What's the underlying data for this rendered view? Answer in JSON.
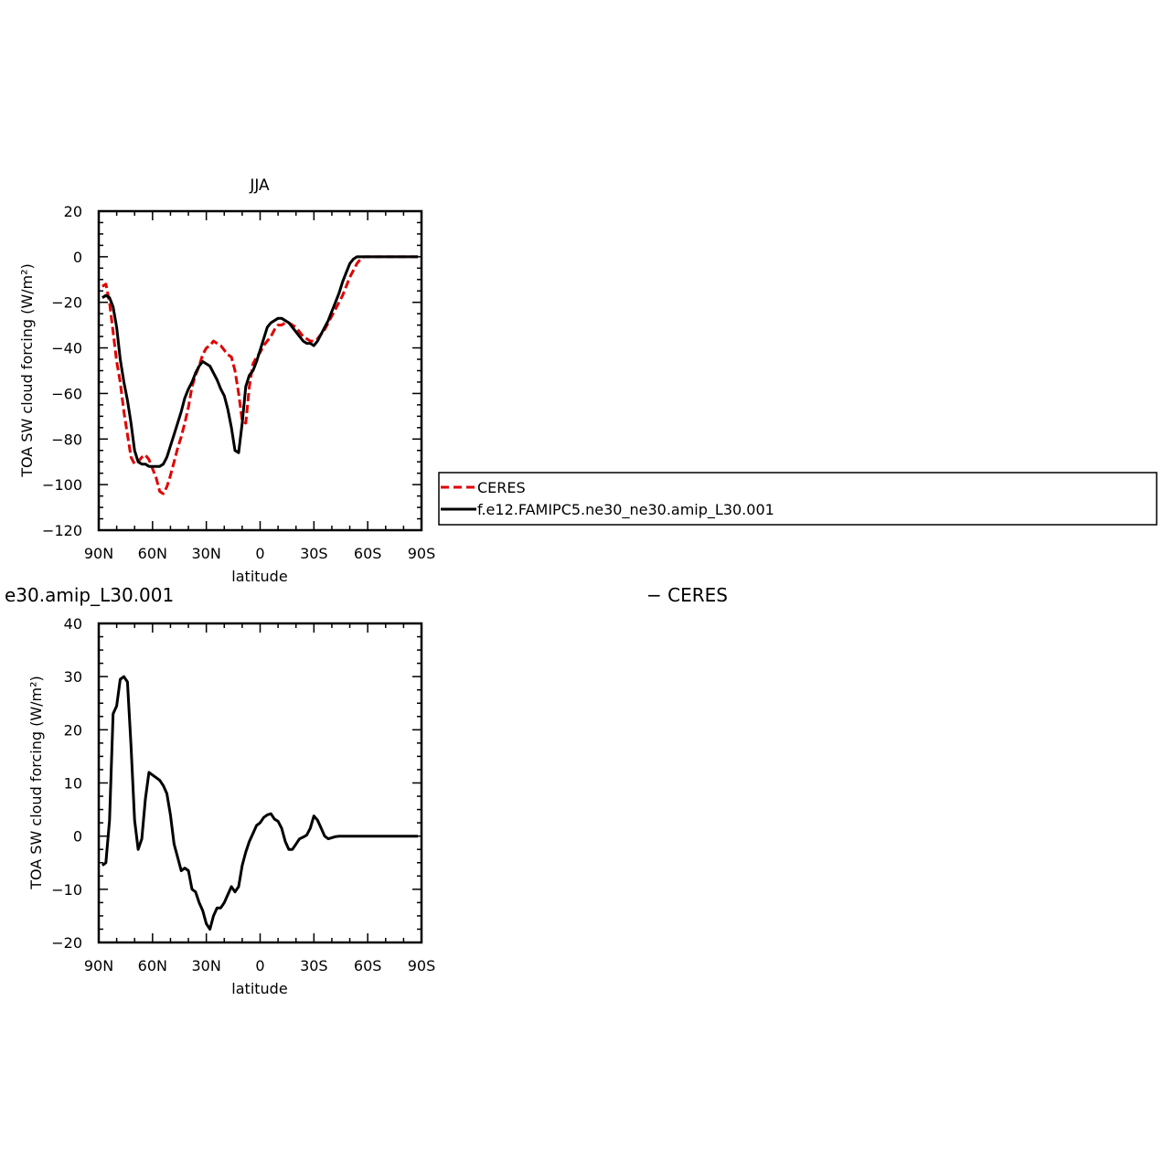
{
  "chart_data": [
    {
      "type": "line",
      "title": "JJA",
      "xlabel": "latitude",
      "ylabel": "TOA SW cloud forcing (W/m²)",
      "xlim": [
        90,
        -90
      ],
      "ylim": [
        -120,
        20
      ],
      "x_ticks": [
        90,
        60,
        30,
        0,
        -30,
        -60,
        -90
      ],
      "x_tick_labels": [
        "90N",
        "60N",
        "30N",
        "0",
        "30S",
        "60S",
        "90S"
      ],
      "y_ticks": [
        -120,
        -100,
        -80,
        -60,
        -40,
        -20,
        0,
        20
      ],
      "y_tick_labels": [
        "−120",
        "−100",
        "−80",
        "−60",
        "−40",
        "−20",
        "0",
        "20"
      ],
      "legend_position": "right, outside plot",
      "series": [
        {
          "name": "CERES",
          "color": "#e00000",
          "dash": "dashed",
          "x": [
            88,
            86,
            84,
            82,
            80,
            78,
            76,
            74,
            72,
            70,
            68,
            66,
            64,
            62,
            60,
            58,
            56,
            54,
            52,
            50,
            48,
            46,
            44,
            42,
            40,
            38,
            36,
            34,
            32,
            30,
            28,
            26,
            24,
            22,
            20,
            18,
            16,
            14,
            12,
            10,
            8,
            6,
            4,
            2,
            0,
            -2,
            -4,
            -6,
            -8,
            -10,
            -12,
            -14,
            -16,
            -18,
            -20,
            -22,
            -24,
            -26,
            -28,
            -30,
            -32,
            -34,
            -36,
            -38,
            -40,
            -42,
            -44,
            -46,
            -48,
            -50,
            -52,
            -54,
            -56,
            -58,
            -60,
            -62,
            -64,
            -66,
            -68,
            -70,
            -72,
            -74,
            -76,
            -78,
            -80,
            -82,
            -84,
            -86,
            -88
          ],
          "y": [
            -13,
            -12,
            -20,
            -33,
            -46,
            -55,
            -68,
            -78,
            -88,
            -91,
            -90,
            -88,
            -87,
            -89,
            -93,
            -97,
            -103,
            -104,
            -101,
            -96,
            -90,
            -84,
            -79,
            -73,
            -66,
            -57,
            -52,
            -48,
            -43,
            -40,
            -39,
            -37,
            -38,
            -39,
            -41,
            -43,
            -44,
            -50,
            -60,
            -72,
            -73,
            -57,
            -47,
            -44,
            -42,
            -39,
            -37,
            -35,
            -32,
            -30,
            -30,
            -29,
            -29,
            -30,
            -31,
            -33,
            -35,
            -36,
            -37,
            -37,
            -36,
            -34,
            -32,
            -29,
            -26,
            -23,
            -20,
            -17,
            -13,
            -9,
            -6,
            -3,
            -1,
            0,
            0,
            0,
            0,
            0,
            0,
            0,
            0,
            0,
            0,
            0,
            0,
            0,
            0,
            0,
            0
          ]
        },
        {
          "name": "f.e12.FAMIPC5.ne30_ne30.amip_L30.001",
          "color": "#000000",
          "dash": "solid",
          "x": [
            88,
            86,
            84,
            82,
            80,
            78,
            76,
            74,
            72,
            70,
            68,
            66,
            64,
            62,
            60,
            58,
            56,
            54,
            52,
            50,
            48,
            46,
            44,
            42,
            40,
            38,
            36,
            34,
            32,
            30,
            28,
            26,
            24,
            22,
            20,
            18,
            16,
            14,
            12,
            10,
            8,
            6,
            4,
            2,
            0,
            -2,
            -4,
            -6,
            -8,
            -10,
            -12,
            -14,
            -16,
            -18,
            -20,
            -22,
            -24,
            -26,
            -28,
            -30,
            -32,
            -34,
            -36,
            -38,
            -40,
            -42,
            -44,
            -46,
            -48,
            -50,
            -52,
            -54,
            -56,
            -58,
            -60,
            -62,
            -64,
            -66,
            -68,
            -70,
            -72,
            -74,
            -76,
            -78,
            -80,
            -82,
            -84,
            -86,
            -88
          ],
          "y": [
            -18,
            -17,
            -18,
            -22,
            -31,
            -45,
            -55,
            -63,
            -73,
            -85,
            -90,
            -91,
            -91,
            -92,
            -92,
            -92,
            -92,
            -91,
            -88,
            -83,
            -78,
            -73,
            -68,
            -62,
            -58,
            -55,
            -51,
            -48,
            -46,
            -47,
            -48,
            -51,
            -54,
            -58,
            -61,
            -67,
            -75,
            -85,
            -86,
            -73,
            -57,
            -52,
            -50,
            -46,
            -41,
            -36,
            -31,
            -29,
            -28,
            -27,
            -27,
            -28,
            -29,
            -31,
            -33,
            -35,
            -37,
            -38,
            -38,
            -39,
            -37,
            -34,
            -31,
            -28,
            -24,
            -20,
            -16,
            -11,
            -7,
            -3,
            -1,
            0,
            0,
            0,
            0,
            0,
            0,
            0,
            0,
            0,
            0,
            0,
            0,
            0,
            0,
            0,
            0,
            0,
            0
          ]
        }
      ]
    },
    {
      "type": "line",
      "title": "e30.amip_L30.001",
      "title_right": "− CERES",
      "xlabel": "latitude",
      "ylabel": "TOA SW cloud forcing (W/m²)",
      "xlim": [
        90,
        -90
      ],
      "ylim": [
        -20,
        40
      ],
      "x_ticks": [
        90,
        60,
        30,
        0,
        -30,
        -60,
        -90
      ],
      "x_tick_labels": [
        "90N",
        "60N",
        "30N",
        "0",
        "30S",
        "60S",
        "90S"
      ],
      "y_ticks": [
        -20,
        -10,
        0,
        10,
        20,
        30,
        40
      ],
      "y_tick_labels": [
        "−20",
        "−10",
        "0",
        "10",
        "20",
        "30",
        "40"
      ],
      "series": [
        {
          "color": "#000000",
          "dash": "solid",
          "x": [
            88,
            86,
            84,
            82,
            80,
            78,
            76,
            74,
            72,
            70,
            68,
            66,
            64,
            62,
            60,
            58,
            56,
            54,
            52,
            50,
            48,
            46,
            44,
            42,
            40,
            38,
            36,
            34,
            32,
            30,
            28,
            26,
            24,
            22,
            20,
            18,
            16,
            14,
            12,
            10,
            8,
            6,
            4,
            2,
            0,
            -2,
            -4,
            -6,
            -8,
            -10,
            -12,
            -14,
            -16,
            -18,
            -20,
            -22,
            -24,
            -26,
            -28,
            -30,
            -32,
            -34,
            -36,
            -38,
            -40,
            -42,
            -44,
            -46,
            -48,
            -50,
            -52,
            -54,
            -56,
            -58,
            -60,
            -62,
            -64,
            -66,
            -68,
            -70,
            -72,
            -74,
            -76,
            -78,
            -80,
            -82,
            -84,
            -86,
            -88
          ],
          "y": [
            -5.5,
            -5,
            3,
            23,
            24.5,
            29.5,
            30,
            29,
            17,
            3,
            -2.5,
            -0.5,
            7,
            12,
            11.5,
            11,
            10.5,
            9.5,
            8,
            4,
            -1.5,
            -4,
            -6.5,
            -6,
            -6.5,
            -10,
            -10.5,
            -12.5,
            -14,
            -16.5,
            -17.5,
            -15,
            -13.5,
            -13.5,
            -12.5,
            -11,
            -9.5,
            -10.5,
            -9.5,
            -5.5,
            -3,
            -1,
            0.5,
            2,
            2.5,
            3.5,
            4,
            4.2,
            3.2,
            2.8,
            1.5,
            -1,
            -2.5,
            -2.5,
            -1.5,
            -0.5,
            -0.2,
            0.2,
            1.5,
            3.8,
            3,
            1.5,
            0,
            -0.5,
            -0.3,
            -0.1,
            0,
            0,
            0,
            0,
            0,
            0,
            0,
            0,
            0,
            0,
            0,
            0,
            0,
            0,
            0,
            0,
            0,
            0,
            0,
            0,
            0,
            0,
            0
          ]
        }
      ]
    }
  ]
}
